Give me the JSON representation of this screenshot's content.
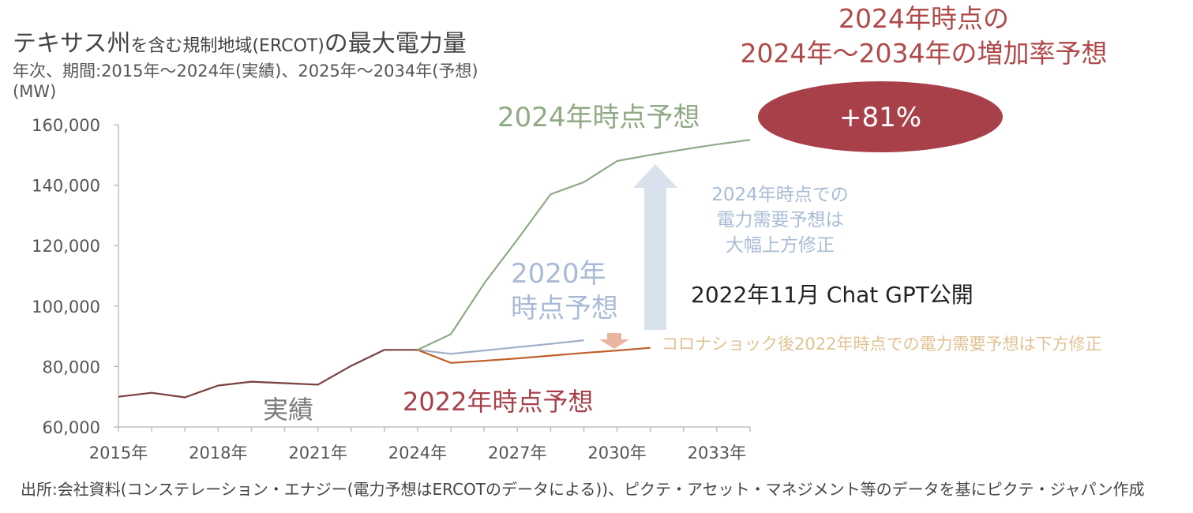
{
  "header": {
    "title_main": "テキサス州",
    "title_small": "を含む規制地域(ERCOT)",
    "title_tail": "の最大電力量",
    "subtitle": "年次、期間:2015年～2024年(実績)、2025年～2034年(予想)",
    "unit": "(MW)",
    "headline_line1": "2024年時点の",
    "headline_line2": "2024年～2034年の増加率予想"
  },
  "footnote": "出所:会社資料(コンステレーション・エナジー(電力予想はERCOTのデータによる))、ピクテ・アセット・マネジメント等のデータを基にピクテ・ジャパン作成",
  "chart_data": {
    "type": "line",
    "x_tick_labels": [
      "2015年",
      "2018年",
      "2021年",
      "2024年",
      "2027年",
      "2030年",
      "2033年"
    ],
    "y_ticks": [
      60000,
      80000,
      100000,
      120000,
      140000,
      160000
    ],
    "y_tick_labels": [
      "60,000",
      "80,000",
      "100,000",
      "120,000",
      "140,000",
      "160,000"
    ],
    "ylim": [
      60000,
      160000
    ],
    "xlim": [
      2015,
      2034
    ],
    "series": [
      {
        "name": "実績",
        "color": "#7a3f3f",
        "x": [
          2015,
          2016,
          2017,
          2018,
          2019,
          2020,
          2021,
          2022,
          2023,
          2024
        ],
        "y": [
          70000,
          71300,
          69800,
          73700,
          75000,
          74500,
          74000,
          80200,
          85500,
          85500
        ]
      },
      {
        "name": "2020年時点予想",
        "color": "#9fb0c9",
        "x": [
          2024,
          2025,
          2026,
          2027,
          2028,
          2029
        ],
        "y": [
          85500,
          84200,
          85300,
          86400,
          87500,
          88700
        ]
      },
      {
        "name": "2022年時点予想",
        "color": "#c0602a",
        "x": [
          2024,
          2025,
          2026,
          2027,
          2028,
          2029,
          2030,
          2031
        ],
        "y": [
          85500,
          81200,
          81900,
          82700,
          83600,
          84500,
          85300,
          86200
        ]
      },
      {
        "name": "2024年時点予想",
        "color": "#8faa85",
        "x": [
          2024,
          2025,
          2026,
          2027,
          2028,
          2029,
          2030,
          2031,
          2032,
          2033,
          2034
        ],
        "y": [
          85500,
          90700,
          107500,
          122000,
          137000,
          141000,
          148000,
          150000,
          151800,
          153500,
          155000
        ]
      }
    ],
    "annotations": {
      "jisseki": "実績",
      "forecast_2020_line1": "2020年",
      "forecast_2020_line2": "時点予想",
      "forecast_2022": "2022年時点予想",
      "forecast_2024": "2024年時点予想",
      "callout_up_line1": "2024年時点での",
      "callout_up_line2": "電力需要予想は",
      "callout_up_line3": "大幅上方修正",
      "chatgpt": "2022年11月 Chat GPT公開",
      "callout_down": "コロナショック後2022年時点での電力需要予想は下方修正",
      "growth_badge": "+81%"
    },
    "colors": {
      "axis": "#bfbfbf",
      "badge_fill": "#a8404a",
      "up_arrow": "#d9e1ec",
      "down_arrow": "#e8b5a3",
      "callout_up_text": "#a8bbd6",
      "callout_down_text": "#e0c293",
      "label_2020": "#a8bbd6",
      "label_2022": "#a8404a",
      "label_2024": "#8faa85",
      "label_jisseki": "#7a7a7a"
    }
  }
}
